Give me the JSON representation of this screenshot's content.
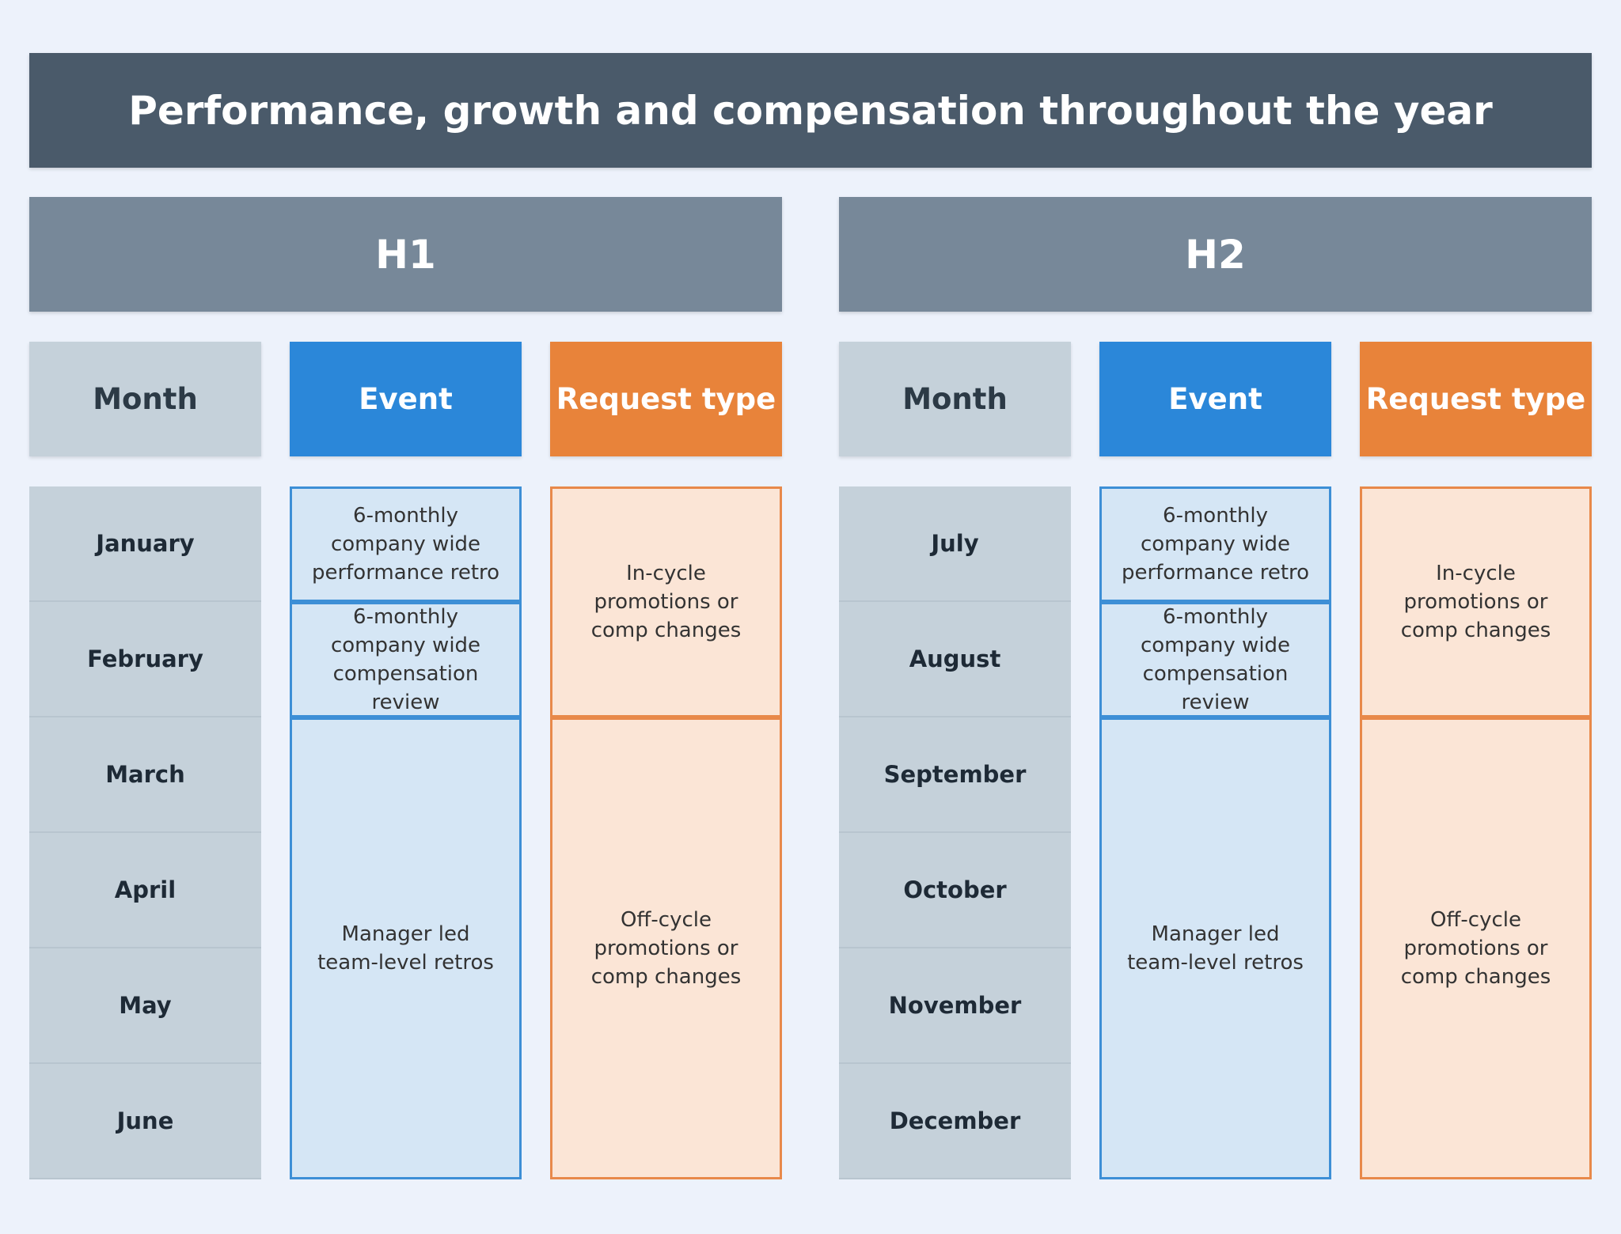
{
  "title": "Performance, growth and compensation throughout the year",
  "halves": [
    {
      "label": "H1",
      "headers": [
        "Month",
        "Event",
        "Request type"
      ],
      "months": [
        "January",
        "February",
        "March",
        "April",
        "May",
        "June"
      ],
      "events": [
        "6-monthly company wide performance retro",
        "6-monthly company wide compensation review",
        "Manager led team-level retros"
      ],
      "requests": [
        "In-cycle promotions or comp changes",
        "Off-cycle promotions or comp changes"
      ]
    },
    {
      "label": "H2",
      "headers": [
        "Month",
        "Event",
        "Request type"
      ],
      "months": [
        "July",
        "August",
        "September",
        "October",
        "November",
        "December"
      ],
      "events": [
        "6-monthly company wide performance retro",
        "6-monthly company wide compensation review",
        "Manager led team-level retros"
      ],
      "requests": [
        "In-cycle promotions or comp changes",
        "Off-cycle promotions or comp changes"
      ]
    }
  ]
}
